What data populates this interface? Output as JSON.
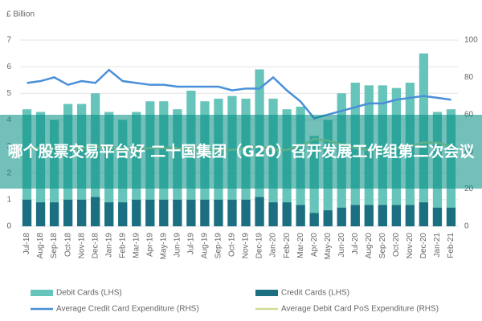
{
  "chart_data": {
    "type": "bar-line",
    "y_label": "£ Billion",
    "categories": [
      "Jul-18",
      "Aug-18",
      "Sep-18",
      "Oct-18",
      "Nov-18",
      "Dec-18",
      "Jan-19",
      "Feb-19",
      "Mar-19",
      "Apr-19",
      "May-19",
      "Jun-19",
      "Jul-19",
      "Aug-19",
      "Sep-19",
      "Oct-19",
      "Nov-19",
      "Dec-19",
      "Jan-20",
      "Feb-20",
      "Mar-20",
      "Apr-20",
      "May-20",
      "Jun-20",
      "Jul-20",
      "Aug-20",
      "Sep-20",
      "Oct-20",
      "Nov-20",
      "Dec-20",
      "Jan-21",
      "Feb-21"
    ],
    "series": [
      {
        "name": "Debit Cards (LHS)",
        "type": "bar",
        "color": "#66c4ba",
        "values": [
          4.4,
          4.3,
          4.0,
          4.6,
          4.6,
          5.0,
          4.3,
          4.0,
          4.3,
          4.7,
          4.7,
          4.4,
          5.1,
          4.7,
          4.8,
          4.9,
          4.8,
          5.9,
          4.8,
          4.4,
          4.5,
          3.4,
          4.0,
          5.0,
          5.4,
          5.3,
          5.3,
          5.2,
          5.4,
          6.5,
          4.3,
          4.4
        ]
      },
      {
        "name": "Credit Cards (LHS)",
        "type": "bar",
        "color": "#1b6f80",
        "values": [
          1.0,
          0.9,
          0.9,
          1.0,
          1.0,
          1.1,
          0.9,
          0.9,
          1.0,
          1.0,
          1.0,
          1.0,
          1.0,
          1.0,
          1.0,
          1.0,
          1.0,
          1.1,
          0.9,
          0.9,
          0.8,
          0.5,
          0.6,
          0.7,
          0.8,
          0.8,
          0.8,
          0.8,
          0.8,
          0.9,
          0.7,
          0.7
        ]
      },
      {
        "name": "Average Credit Card Expenditure (RHS)",
        "type": "line",
        "axis": "y2",
        "color": "#4a8fd8",
        "values": [
          77,
          78,
          80,
          76,
          78,
          77,
          84,
          78,
          77,
          76,
          76,
          75,
          75,
          75,
          75,
          73,
          74,
          74,
          80,
          73,
          67,
          58,
          60,
          62,
          64,
          66,
          66,
          68,
          69,
          70,
          69,
          68
        ]
      },
      {
        "name": "Average Debit Card PoS Expenditure (RHS)",
        "type": "line",
        "axis": "y2",
        "color": "#d4dc98",
        "values": [
          42,
          42,
          42,
          41,
          42,
          43,
          42,
          41,
          41,
          42,
          42,
          42,
          41,
          41,
          41,
          41,
          42,
          43,
          41,
          41,
          43,
          47,
          46,
          44,
          42,
          41,
          41,
          42,
          43,
          45,
          45,
          43
        ]
      }
    ],
    "ylim": [
      0,
      7
    ],
    "yticks": [
      0,
      1,
      2,
      3,
      4,
      5,
      6,
      7
    ],
    "y2lim": [
      0,
      100
    ],
    "y2ticks": [
      0,
      20,
      40,
      60,
      80,
      100
    ],
    "grid": true,
    "legend": "bottom"
  },
  "overlay_text": "哪个股票交易平台好 二十国集团（G20）召开发展工作组第二次会议"
}
